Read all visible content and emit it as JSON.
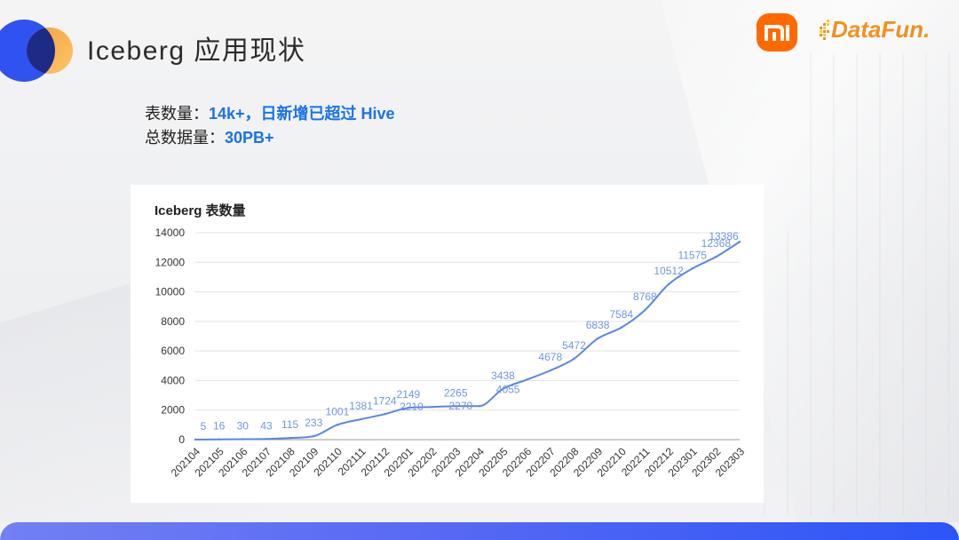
{
  "slide": {
    "title": "Iceberg 应用现状",
    "stats": [
      {
        "label": "表数量：",
        "value": "14k+，日新增已超过 Hive"
      },
      {
        "label": "总数据量：",
        "value": "30PB+"
      }
    ]
  },
  "logos": {
    "brand_mark": "overlapping-circles-icon",
    "xiaomi": "xiaomi-mi-icon",
    "datafun_icon": "pixel-dots-icon",
    "datafun": "DataFun."
  },
  "colors": {
    "title_text": "#2B2B2B",
    "stat_accent": "#1A73E8",
    "series_line": "#5A86E4",
    "data_label": "#6F95E4",
    "xiaomi_orange": "#FF6900",
    "datafun_orange": "#F29021",
    "footer_band_start": "#7280F3",
    "footer_band_end": "#2C55F6"
  },
  "chart_data": {
    "type": "line",
    "title": "Iceberg 表数量",
    "categories": [
      "202104",
      "202105",
      "202106",
      "202107",
      "202108",
      "202109",
      "202110",
      "202111",
      "202112",
      "202201",
      "202202",
      "202203",
      "202204",
      "202205",
      "202206",
      "202207",
      "202208",
      "202209",
      "202210",
      "202211",
      "202212",
      "202301",
      "202302",
      "202303"
    ],
    "series": [
      {
        "values": [
          5,
          16,
          30,
          43,
          115,
          233,
          1001,
          1381,
          1724,
          2149,
          2210,
          2265,
          2270,
          3438,
          4055,
          4678,
          5472,
          6838,
          7584,
          8768,
          10512,
          11575,
          12368,
          13386
        ],
        "data_labels": true
      }
    ],
    "ylim": [
      0,
      14000
    ],
    "yticks": [
      0,
      2000,
      4000,
      6000,
      8000,
      10000,
      12000,
      14000
    ],
    "grid": true,
    "legend": "none"
  }
}
